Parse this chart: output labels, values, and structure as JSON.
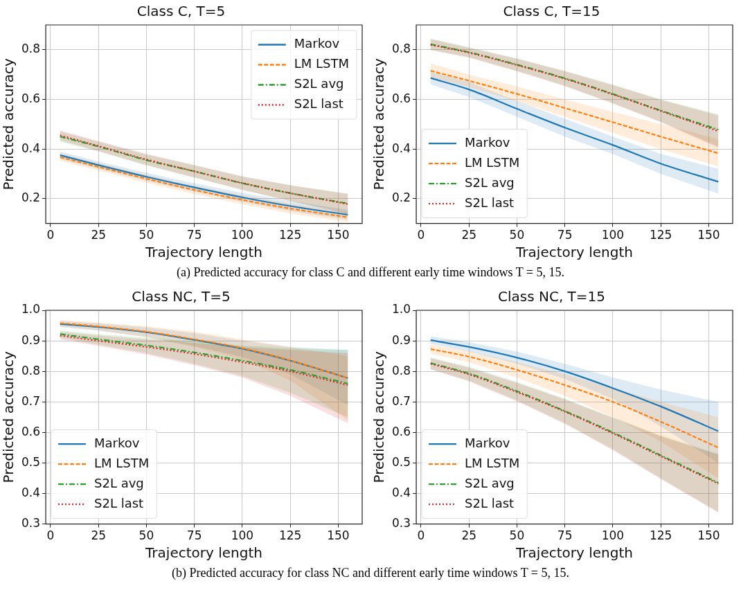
{
  "chart_data": [
    {
      "type": "line",
      "title": "Class C, T=5",
      "xlabel": "Trajectory length",
      "ylabel": "Predicted accuracy",
      "xlim": [
        -2.5,
        162.5
      ],
      "xticks": [
        0,
        25,
        50,
        75,
        100,
        125,
        150
      ],
      "ylim": [
        0.1,
        0.9
      ],
      "yticks": [
        0.2,
        0.4,
        0.6,
        0.8
      ],
      "grid": true,
      "legend": "top right",
      "annotations": [
        "(a) Predicted accuracy for class C and different early time windows T = 5, 15."
      ],
      "x": [
        5,
        25,
        50,
        75,
        100,
        125,
        155
      ],
      "series": [
        {
          "name": "Markov",
          "color": "#1f77b4",
          "line_style": "solid",
          "values": [
            0.375,
            0.335,
            0.288,
            0.245,
            0.205,
            0.17,
            0.135
          ],
          "lower": [
            0.36,
            0.32,
            0.272,
            0.228,
            0.187,
            0.15,
            0.115
          ],
          "upper": [
            0.39,
            0.35,
            0.304,
            0.262,
            0.223,
            0.19,
            0.155
          ]
        },
        {
          "name": "LM LSTM",
          "color": "#ff7f0e",
          "line_style": "dashed",
          "values": [
            0.367,
            0.328,
            0.28,
            0.235,
            0.195,
            0.16,
            0.125
          ],
          "lower": [
            0.352,
            0.313,
            0.264,
            0.218,
            0.177,
            0.14,
            0.105
          ],
          "upper": [
            0.382,
            0.343,
            0.296,
            0.252,
            0.213,
            0.18,
            0.145
          ]
        },
        {
          "name": "S2L avg",
          "color": "#2ca02c",
          "line_style": "dashdot",
          "values": [
            0.45,
            0.41,
            0.355,
            0.31,
            0.262,
            0.222,
            0.18
          ],
          "lower": [
            0.43,
            0.39,
            0.333,
            0.285,
            0.235,
            0.19,
            0.14
          ],
          "upper": [
            0.47,
            0.43,
            0.377,
            0.335,
            0.289,
            0.254,
            0.22
          ]
        },
        {
          "name": "S2L last",
          "color": "#d62728",
          "line_style": "dotted",
          "values": [
            0.455,
            0.412,
            0.358,
            0.31,
            0.263,
            0.222,
            0.178
          ],
          "lower": [
            0.435,
            0.392,
            0.336,
            0.285,
            0.236,
            0.19,
            0.138
          ],
          "upper": [
            0.475,
            0.432,
            0.38,
            0.335,
            0.29,
            0.254,
            0.218
          ]
        }
      ]
    },
    {
      "type": "line",
      "title": "Class C, T=15",
      "xlabel": "Trajectory length",
      "ylabel": "Predicted accuracy",
      "xlim": [
        -2.5,
        162.5
      ],
      "xticks": [
        0,
        25,
        50,
        75,
        100,
        125,
        150
      ],
      "ylim": [
        0.1,
        0.9
      ],
      "yticks": [
        0.2,
        0.4,
        0.6,
        0.8
      ],
      "grid": true,
      "legend": "bottom left",
      "x": [
        5,
        25,
        50,
        75,
        100,
        125,
        155
      ],
      "series": [
        {
          "name": "Markov",
          "color": "#1f77b4",
          "line_style": "solid",
          "values": [
            0.686,
            0.64,
            0.562,
            0.486,
            0.416,
            0.341,
            0.268
          ],
          "lower": [
            0.66,
            0.61,
            0.53,
            0.45,
            0.38,
            0.3,
            0.22
          ],
          "upper": [
            0.71,
            0.67,
            0.594,
            0.522,
            0.45,
            0.38,
            0.32
          ]
        },
        {
          "name": "LM LSTM",
          "color": "#ff7f0e",
          "line_style": "dashed",
          "values": [
            0.715,
            0.675,
            0.622,
            0.565,
            0.508,
            0.45,
            0.383
          ],
          "lower": [
            0.69,
            0.65,
            0.592,
            0.53,
            0.465,
            0.4,
            0.33
          ],
          "upper": [
            0.745,
            0.7,
            0.652,
            0.6,
            0.55,
            0.5,
            0.44
          ]
        },
        {
          "name": "S2L avg",
          "color": "#2ca02c",
          "line_style": "dashdot",
          "values": [
            0.822,
            0.79,
            0.74,
            0.685,
            0.622,
            0.555,
            0.478
          ],
          "lower": [
            0.8,
            0.77,
            0.715,
            0.655,
            0.585,
            0.51,
            0.41
          ],
          "upper": [
            0.845,
            0.81,
            0.765,
            0.715,
            0.66,
            0.6,
            0.54
          ]
        },
        {
          "name": "S2L last",
          "color": "#d62728",
          "line_style": "dotted",
          "values": [
            0.82,
            0.788,
            0.738,
            0.683,
            0.62,
            0.553,
            0.472
          ],
          "lower": [
            0.798,
            0.768,
            0.713,
            0.653,
            0.583,
            0.508,
            0.405
          ],
          "upper": [
            0.843,
            0.808,
            0.763,
            0.713,
            0.657,
            0.598,
            0.535
          ]
        }
      ]
    },
    {
      "type": "line",
      "title": "Class NC, T=5",
      "xlabel": "Trajectory length",
      "ylabel": "Predicted accuracy",
      "xlim": [
        -2.5,
        162.5
      ],
      "xticks": [
        0,
        25,
        50,
        75,
        100,
        125,
        150
      ],
      "ylim": [
        0.3,
        1.0
      ],
      "yticks": [
        0.3,
        0.4,
        0.5,
        0.6,
        0.7,
        0.8,
        0.9,
        {
          "value": 1.0,
          "label": "1.0"
        }
      ],
      "grid": true,
      "legend": "bottom left",
      "annotations": [
        "(b) Predicted accuracy for class NC and different early time windows T = 5, 15."
      ],
      "x": [
        5,
        25,
        50,
        75,
        100,
        125,
        155
      ],
      "series": [
        {
          "name": "Markov",
          "color": "#1f77b4",
          "line_style": "solid",
          "values": [
            0.955,
            0.945,
            0.928,
            0.903,
            0.874,
            0.835,
            0.778
          ],
          "lower": [
            0.945,
            0.933,
            0.912,
            0.883,
            0.848,
            0.79,
            0.69
          ],
          "upper": [
            0.965,
            0.957,
            0.944,
            0.925,
            0.9,
            0.88,
            0.87
          ]
        },
        {
          "name": "LM LSTM",
          "color": "#ff7f0e",
          "line_style": "dashed",
          "values": [
            0.958,
            0.947,
            0.93,
            0.905,
            0.876,
            0.836,
            0.778
          ],
          "lower": [
            0.948,
            0.934,
            0.912,
            0.88,
            0.84,
            0.77,
            0.64
          ],
          "upper": [
            0.968,
            0.96,
            0.948,
            0.93,
            0.905,
            0.88,
            0.85
          ]
        },
        {
          "name": "S2L avg",
          "color": "#2ca02c",
          "line_style": "dashdot",
          "values": [
            0.922,
            0.905,
            0.885,
            0.862,
            0.835,
            0.805,
            0.76
          ],
          "lower": [
            0.91,
            0.888,
            0.86,
            0.825,
            0.785,
            0.73,
            0.65
          ],
          "upper": [
            0.934,
            0.922,
            0.91,
            0.898,
            0.885,
            0.875,
            0.87
          ]
        },
        {
          "name": "S2L last",
          "color": "#d62728",
          "line_style": "dotted",
          "values": [
            0.917,
            0.9,
            0.88,
            0.857,
            0.83,
            0.8,
            0.755
          ],
          "lower": [
            0.905,
            0.883,
            0.855,
            0.82,
            0.78,
            0.72,
            0.63
          ],
          "upper": [
            0.929,
            0.917,
            0.905,
            0.893,
            0.88,
            0.87,
            0.86
          ]
        }
      ]
    },
    {
      "type": "line",
      "title": "Class NC, T=15",
      "xlabel": "Trajectory length",
      "ylabel": "Predicted accuracy",
      "xlim": [
        -2.5,
        162.5
      ],
      "xticks": [
        0,
        25,
        50,
        75,
        100,
        125,
        150
      ],
      "ylim": [
        0.3,
        1.0
      ],
      "yticks": [
        0.3,
        0.4,
        0.5,
        0.6,
        0.7,
        0.8,
        0.9,
        {
          "value": 1.0,
          "label": "1.0"
        }
      ],
      "grid": true,
      "legend": "bottom left",
      "x": [
        5,
        25,
        50,
        75,
        100,
        125,
        155
      ],
      "series": [
        {
          "name": "Markov",
          "color": "#1f77b4",
          "line_style": "solid",
          "values": [
            0.902,
            0.88,
            0.845,
            0.8,
            0.745,
            0.685,
            0.604
          ],
          "lower": [
            0.89,
            0.865,
            0.825,
            0.775,
            0.71,
            0.62,
            0.5
          ],
          "upper": [
            0.915,
            0.895,
            0.865,
            0.825,
            0.78,
            0.74,
            0.7
          ]
        },
        {
          "name": "LM LSTM",
          "color": "#ff7f0e",
          "line_style": "dashed",
          "values": [
            0.873,
            0.848,
            0.805,
            0.755,
            0.7,
            0.635,
            0.55
          ],
          "lower": [
            0.858,
            0.83,
            0.78,
            0.72,
            0.65,
            0.57,
            0.45
          ],
          "upper": [
            0.888,
            0.866,
            0.83,
            0.79,
            0.745,
            0.7,
            0.65
          ]
        },
        {
          "name": "S2L avg",
          "color": "#2ca02c",
          "line_style": "dashdot",
          "values": [
            0.827,
            0.793,
            0.735,
            0.67,
            0.6,
            0.525,
            0.435
          ],
          "lower": [
            0.808,
            0.77,
            0.705,
            0.63,
            0.545,
            0.45,
            0.34
          ],
          "upper": [
            0.845,
            0.815,
            0.765,
            0.71,
            0.65,
            0.59,
            0.53
          ]
        },
        {
          "name": "S2L last",
          "color": "#d62728",
          "line_style": "dotted",
          "values": [
            0.825,
            0.79,
            0.732,
            0.668,
            0.597,
            0.522,
            0.432
          ],
          "lower": [
            0.806,
            0.767,
            0.702,
            0.628,
            0.542,
            0.447,
            0.337
          ],
          "upper": [
            0.843,
            0.812,
            0.762,
            0.708,
            0.647,
            0.587,
            0.527
          ]
        }
      ]
    }
  ]
}
